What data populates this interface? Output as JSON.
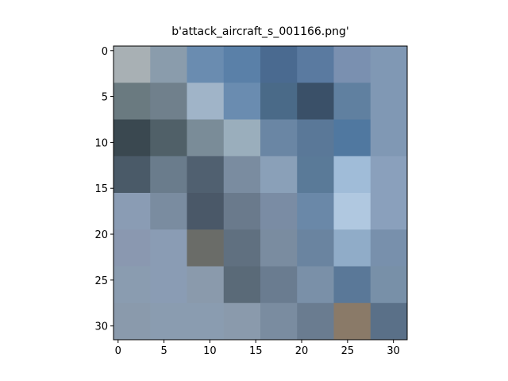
{
  "chart_data": {
    "type": "image",
    "title": "b'attack_aircraft_s_001166.png'",
    "xlim": [
      -0.5,
      31.5
    ],
    "ylim": [
      31.5,
      -0.5
    ],
    "xticks": [
      0,
      5,
      10,
      15,
      20,
      25,
      30
    ],
    "yticks": [
      0,
      5,
      10,
      15,
      20,
      25,
      30
    ],
    "pixels": [
      [
        "#a8b0b4",
        "#8a9cac",
        "#6a8cb0",
        "#5a80a8",
        "#4a6a90",
        "#5a7aa0",
        "#7a90b0",
        "#8098b4"
      ],
      [
        "#6a7a80",
        "#70808c",
        "#a0b4c8",
        "#6a8cb0",
        "#4a6a88",
        "#3a5068",
        "#6080a0",
        "#8098b4"
      ],
      [
        "#3a4850",
        "#506068",
        "#7a8c98",
        "#9aaebc",
        "#6a86a4",
        "#5a7898",
        "#5078a0",
        "#8098b4"
      ],
      [
        "#4a5a68",
        "#6a7c8c",
        "#506070",
        "#7a8ca0",
        "#8aa0b8",
        "#5a7a98",
        "#a0bcd8",
        "#8aa0bc"
      ],
      [
        "#8a9cb4",
        "#7a8ca0",
        "#4a5868",
        "#6a7a8c",
        "#7a8ca4",
        "#6a88a8",
        "#b0c8e0",
        "#8aa0bc"
      ],
      [
        "#8a98b0",
        "#8a9cb4",
        "#6a6c68",
        "#607080",
        "#7a8ca0",
        "#6a84a0",
        "#90acc8",
        "#7890ac"
      ],
      [
        "#8a9cb0",
        "#8a9cb4",
        "#8a9aac",
        "#5a6a78",
        "#6a7c90",
        "#7a90a8",
        "#5a7898",
        "#7890a8"
      ],
      [
        "#8a9aac",
        "#8a9cb0",
        "#8a9cb0",
        "#8a9aac",
        "#7a8ca0",
        "#6a7c90",
        "#8a7a68",
        "#5a7088"
      ]
    ]
  }
}
